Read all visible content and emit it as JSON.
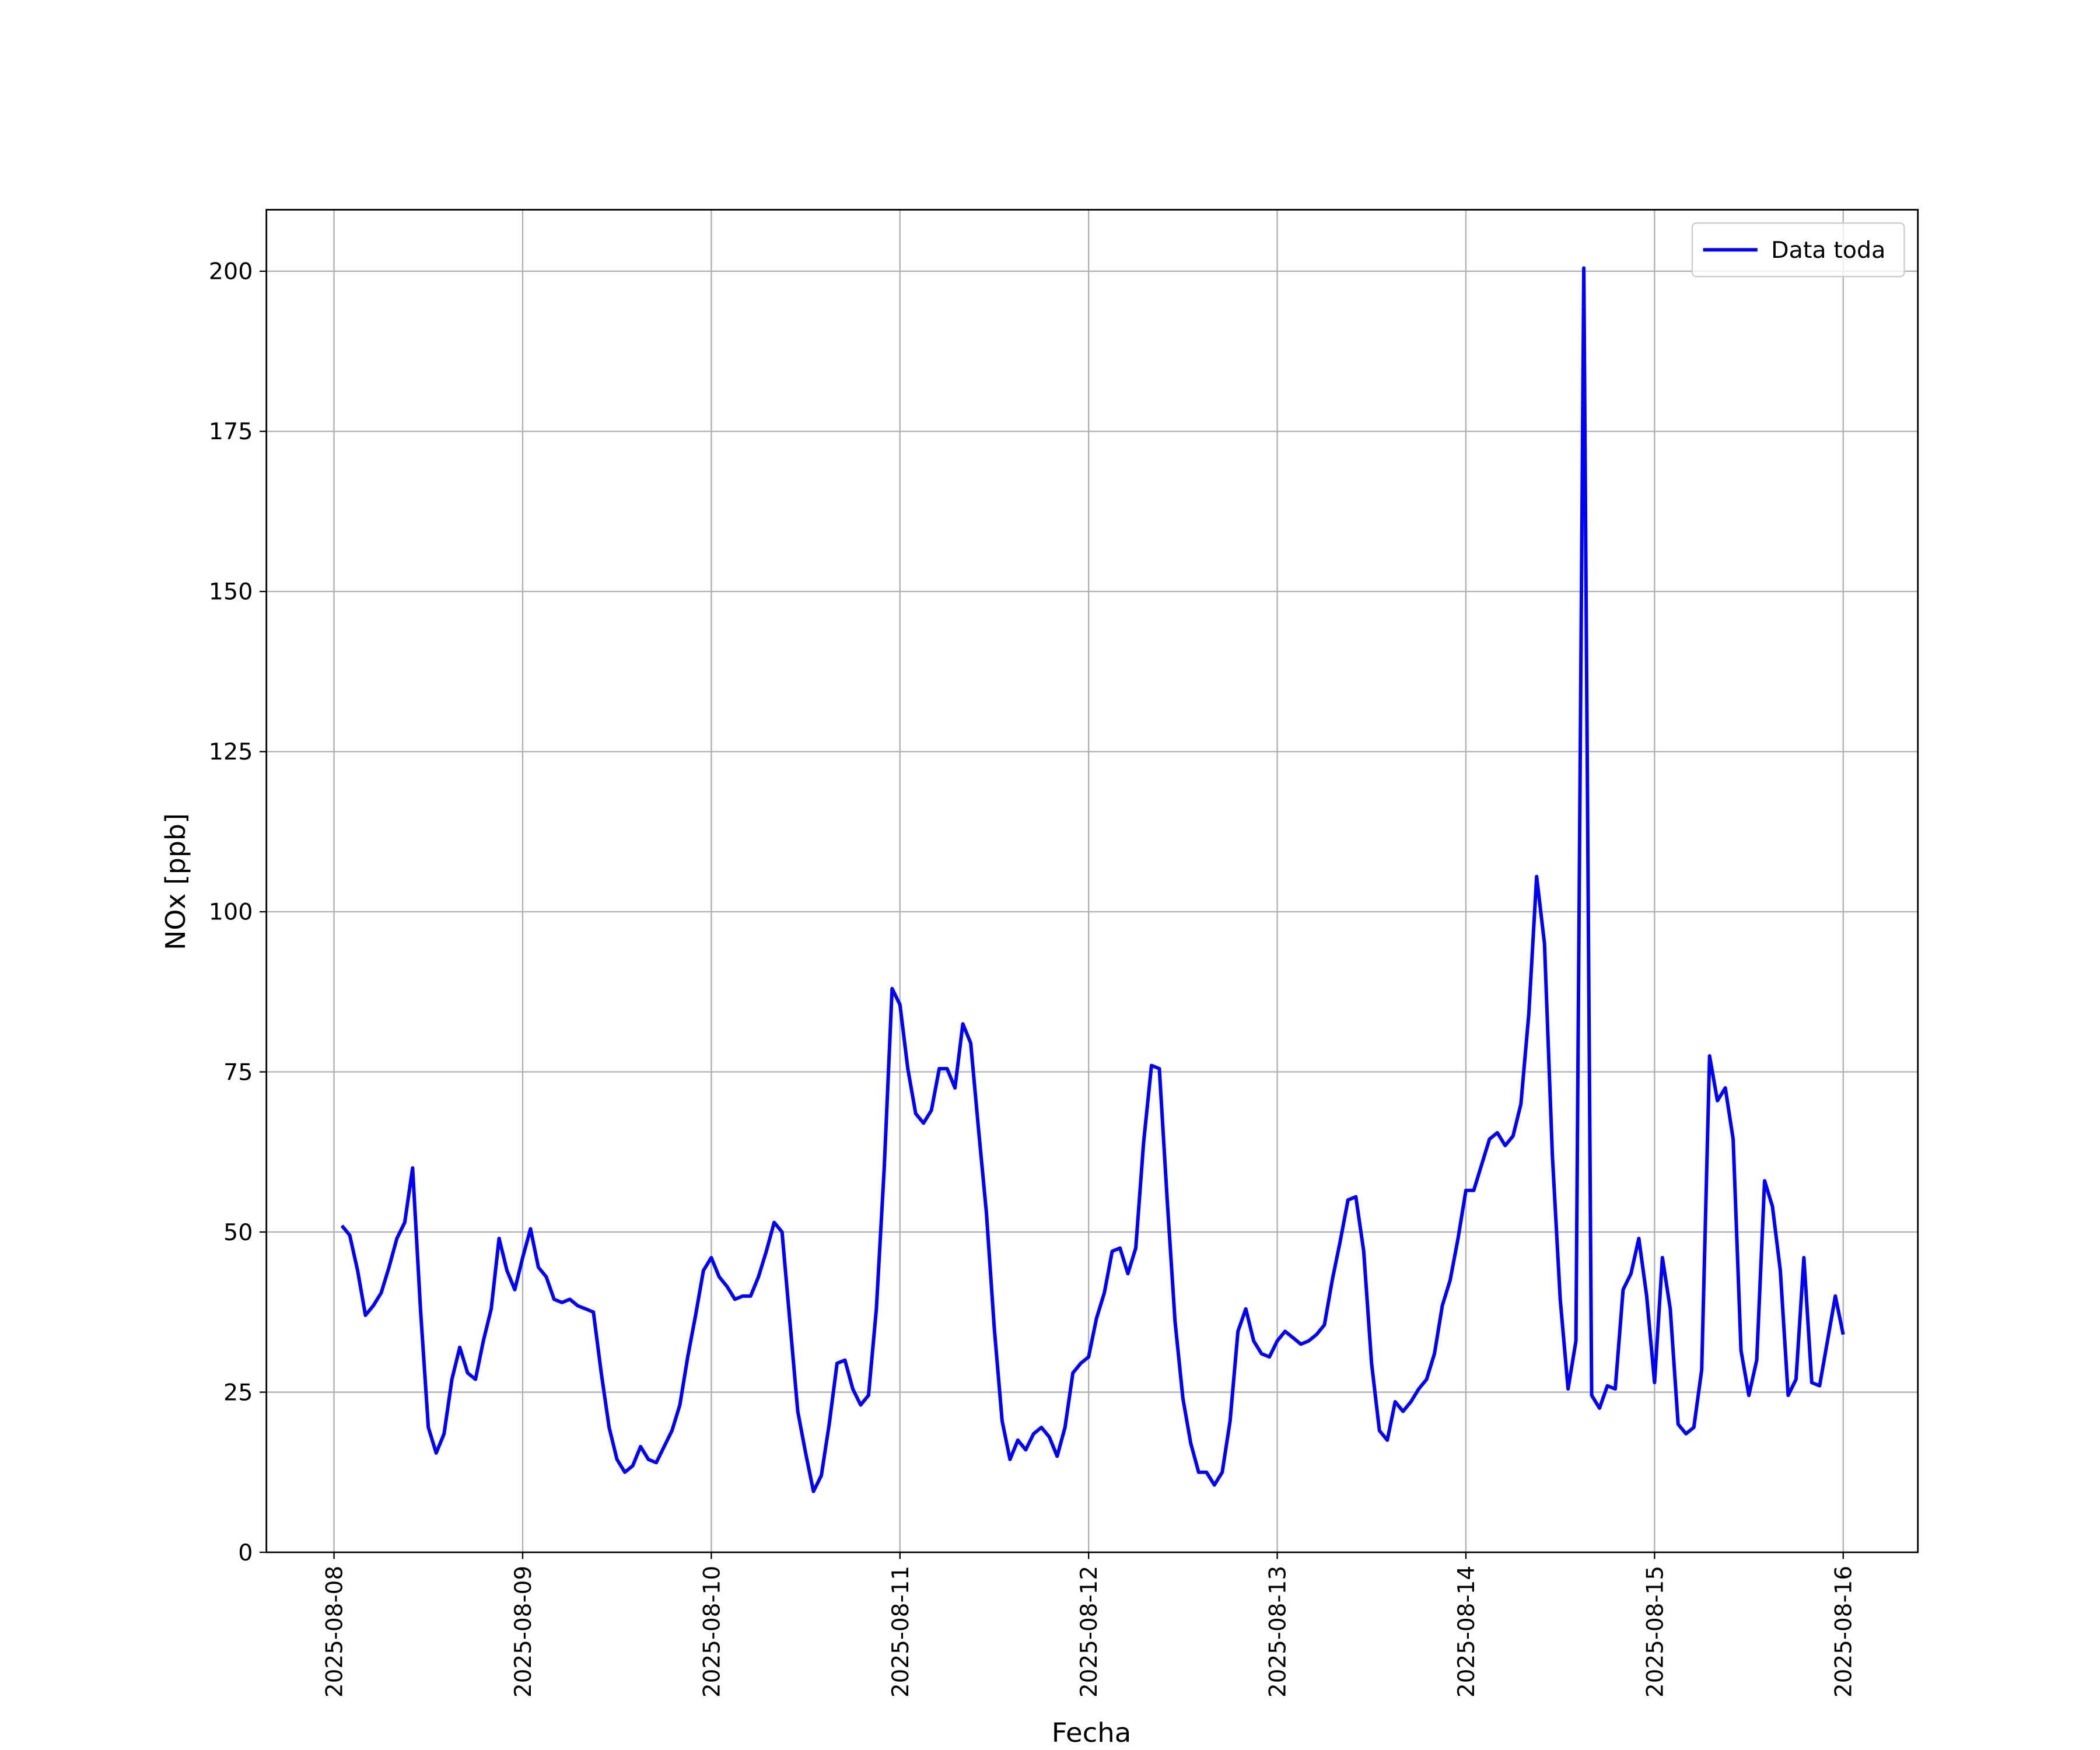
{
  "chart_data": {
    "type": "line",
    "xlabel": "Fecha",
    "ylabel": "NOx [ppb]",
    "x": [
      1,
      2,
      3,
      4,
      5,
      6,
      7,
      8,
      9,
      10,
      11,
      12,
      13,
      14,
      15,
      16,
      17,
      18,
      19,
      20,
      21,
      22,
      23,
      24,
      25,
      26,
      27,
      28,
      29,
      30,
      31,
      32,
      33,
      34,
      35,
      36,
      37,
      38,
      39,
      40,
      41,
      42,
      43,
      44,
      45,
      46,
      47,
      48,
      49,
      50,
      51,
      52,
      53,
      54,
      55,
      56,
      57,
      58,
      59,
      60,
      61,
      62,
      63,
      64,
      65,
      66,
      67,
      68,
      69,
      70,
      71,
      72,
      73,
      74,
      75,
      76,
      77,
      78,
      79,
      80,
      81,
      82,
      83,
      84,
      85,
      86,
      87,
      88,
      89,
      90,
      91,
      92,
      93,
      94,
      95,
      96,
      97,
      98,
      99,
      100,
      101,
      102,
      103,
      104,
      105,
      106,
      107,
      108,
      109,
      110,
      111,
      112,
      113,
      114,
      115,
      116,
      117,
      118,
      119,
      120,
      121,
      122,
      123,
      124,
      125,
      126,
      127,
      128,
      129,
      130,
      131,
      132,
      133,
      134,
      135,
      136,
      137,
      138,
      139,
      140,
      141,
      142,
      143,
      144,
      145,
      146,
      147,
      148,
      149,
      150,
      151,
      152,
      153,
      154,
      155,
      156,
      157,
      158,
      159,
      160,
      161,
      162,
      163,
      164,
      165,
      166,
      167,
      168,
      169,
      170,
      171,
      172,
      173,
      174,
      175,
      176,
      177,
      178,
      179,
      180,
      181,
      182,
      183,
      184,
      185,
      186,
      187,
      188,
      189,
      190,
      191,
      192
    ],
    "series": [
      {
        "name": "Data toda",
        "color": "#0000ff",
        "values": [
          51,
          49.5,
          44,
          37,
          38.5,
          40.5,
          44.5,
          49,
          51.5,
          60,
          38,
          19.5,
          15.5,
          18.5,
          27,
          32,
          28,
          27,
          33,
          38,
          49,
          44,
          41,
          46,
          50.5,
          44.5,
          43,
          39.5,
          39,
          39.5,
          38.5,
          38,
          37.5,
          28,
          19.5,
          14.5,
          12.5,
          13.5,
          16.5,
          14.5,
          14,
          16.5,
          19,
          23,
          30.5,
          37,
          44,
          46,
          43,
          41.5,
          39.5,
          40,
          40,
          43,
          47,
          51.5,
          50,
          36,
          22,
          15.5,
          9.5,
          12,
          20,
          29.5,
          30,
          25.5,
          23,
          24.5,
          38,
          60,
          88,
          85.5,
          75.5,
          68.5,
          67,
          69,
          75.5,
          75.5,
          72.5,
          82.5,
          79.5,
          66,
          53,
          35,
          20.5,
          14.5,
          17.5,
          16,
          18.5,
          19.5,
          18,
          15,
          19.5,
          28,
          29.5,
          30.5,
          36.5,
          40.5,
          47,
          47.5,
          43.5,
          47.5,
          64,
          76,
          75.5,
          55,
          36,
          24,
          17,
          12.5,
          12.5,
          10.5,
          12.5,
          20.5,
          34.5,
          38,
          33,
          31,
          30.5,
          33,
          34.5,
          33.5,
          32.5,
          33,
          34,
          35.5,
          42.5,
          48.5,
          55,
          55.5,
          47,
          29.5,
          19,
          17.5,
          23.5,
          22,
          23.5,
          25.5,
          27,
          31,
          38.5,
          42.5,
          49,
          56.5,
          56.5,
          60.5,
          64.5,
          65.5,
          63.5,
          65,
          70,
          84,
          105.5,
          95,
          62,
          39.5,
          25.5,
          33,
          200.5,
          24.5,
          22.5,
          26,
          25.5,
          41,
          43.5,
          49,
          40,
          26.5,
          46,
          38,
          20,
          18.5,
          19.5,
          28.5,
          77.5,
          70.5,
          72.5,
          64.5,
          31.5,
          24.5,
          30,
          58,
          54,
          44,
          24.5,
          27,
          46,
          26.5,
          26,
          33,
          40,
          34
        ]
      }
    ],
    "xlim": [
      -8.6,
      201.5
    ],
    "xticks": [
      {
        "value": 0,
        "label": "2025-08-08"
      },
      {
        "value": 24,
        "label": "2025-08-09"
      },
      {
        "value": 48,
        "label": "2025-08-10"
      },
      {
        "value": 72,
        "label": "2025-08-11"
      },
      {
        "value": 96,
        "label": "2025-08-12"
      },
      {
        "value": 120,
        "label": "2025-08-13"
      },
      {
        "value": 144,
        "label": "2025-08-14"
      },
      {
        "value": 168,
        "label": "2025-08-15"
      },
      {
        "value": 192,
        "label": "2025-08-16"
      }
    ],
    "ylim": [
      0,
      209.6
    ],
    "yticks": [
      0,
      25,
      50,
      75,
      100,
      125,
      150,
      175,
      200
    ],
    "grid": true,
    "legend": "upper right"
  }
}
